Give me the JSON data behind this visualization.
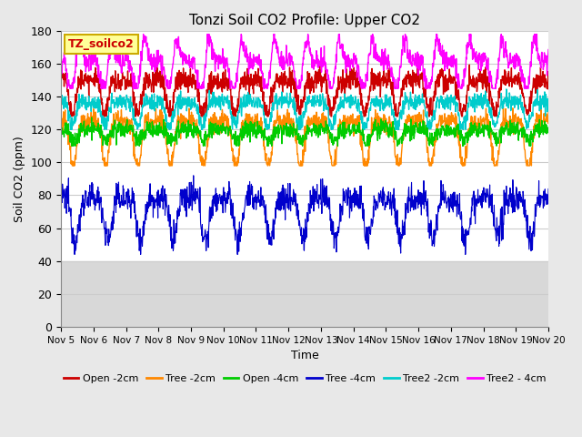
{
  "title": "Tonzi Soil CO2 Profile: Upper CO2",
  "ylabel": "Soil CO2 (ppm)",
  "xlabel": "Time",
  "legend_label": "TZ_soilco2",
  "ylim": [
    0,
    180
  ],
  "yticks": [
    0,
    20,
    40,
    60,
    80,
    100,
    120,
    140,
    160,
    180
  ],
  "xtick_labels": [
    "Nov 5",
    "Nov 6",
    "Nov 7",
    "Nov 8",
    "Nov 9",
    "Nov 10",
    "Nov 11",
    "Nov 12",
    "Nov 13",
    "Nov 14",
    "Nov 15",
    "Nov 16",
    "Nov 17",
    "Nov 18",
    "Nov 19",
    "Nov 20"
  ],
  "series": [
    {
      "label": "Open -2cm",
      "color": "#cc0000",
      "lw": 1.0
    },
    {
      "label": "Tree -2cm",
      "color": "#ff8800",
      "lw": 1.0
    },
    {
      "label": "Open -4cm",
      "color": "#00cc00",
      "lw": 1.0
    },
    {
      "label": "Tree -4cm",
      "color": "#0000cc",
      "lw": 0.8
    },
    {
      "label": "Tree2 -2cm",
      "color": "#00cccc",
      "lw": 1.0
    },
    {
      "label": "Tree2 - 4cm",
      "color": "#ff00ff",
      "lw": 1.0
    }
  ],
  "bg_color": "#e8e8e8",
  "plot_bg": "#ffffff",
  "grid_color": "#cccccc",
  "shade_color": "#d8d8d8",
  "shade_ylim": [
    0,
    40
  ],
  "legend_box_facecolor": "#ffff99",
  "legend_box_edgecolor": "#ccaa00",
  "legend_text_color": "#cc0000"
}
